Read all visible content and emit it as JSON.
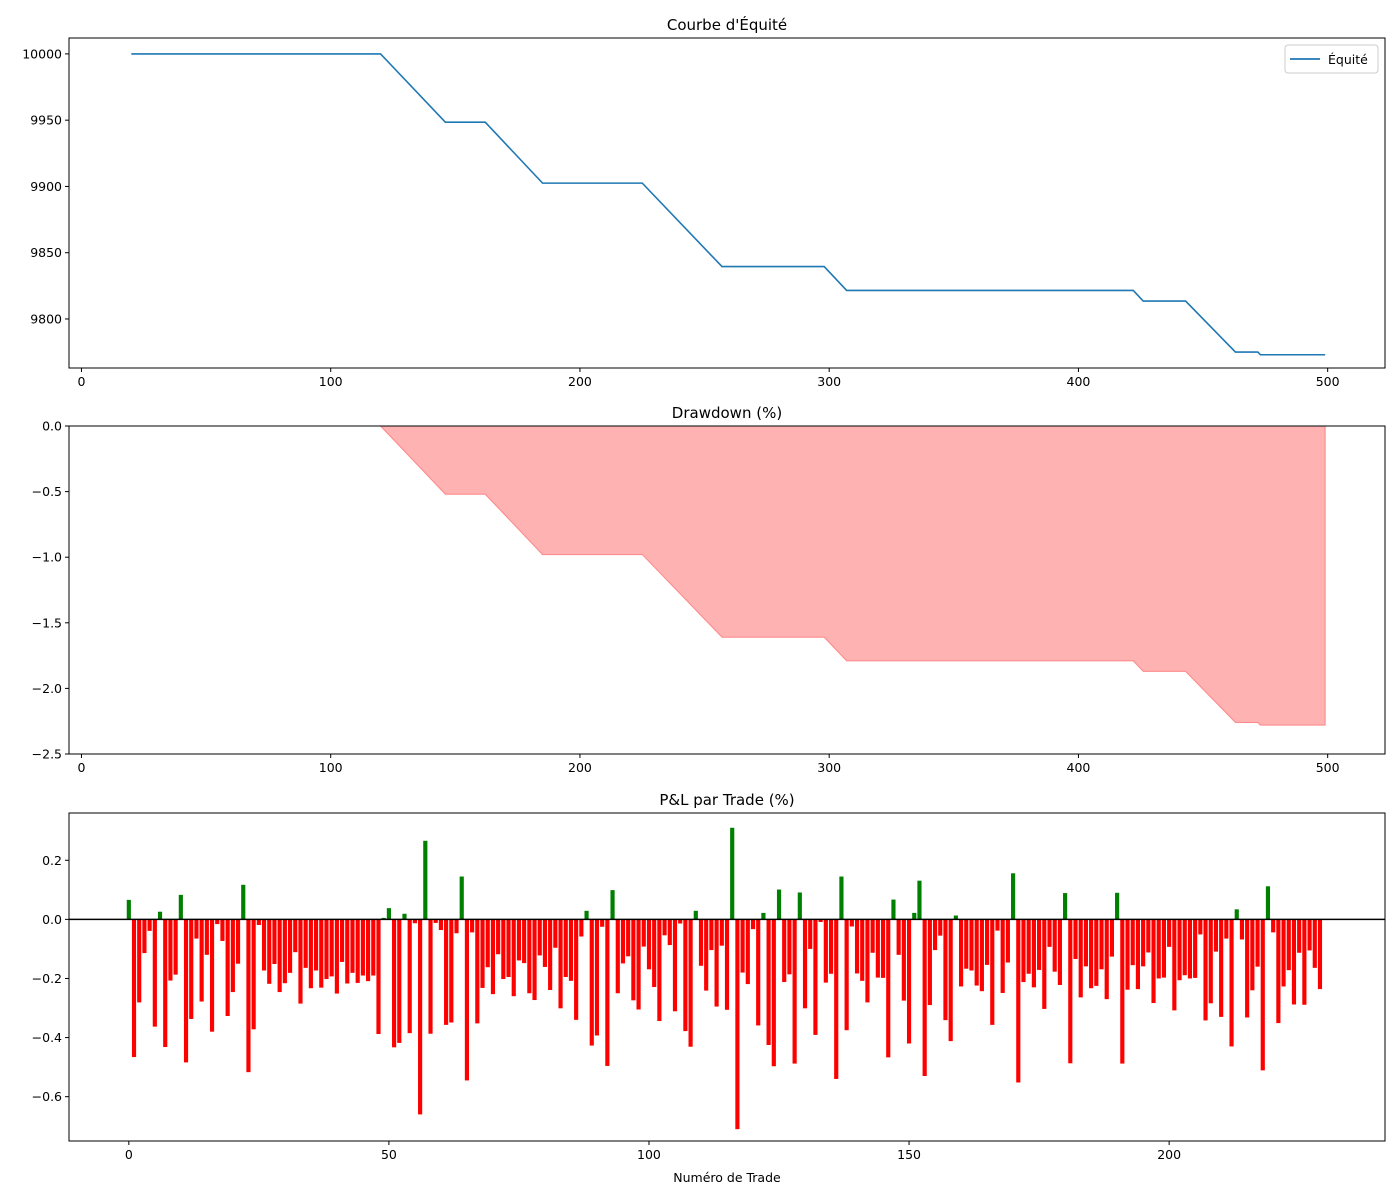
{
  "chart_data": [
    {
      "type": "line",
      "title": "Courbe d'Équité",
      "xlabel": "",
      "ylabel": "",
      "xlim": [
        -5,
        523
      ],
      "ylim": [
        9763,
        10012
      ],
      "xticks": [
        0,
        100,
        200,
        300,
        400,
        500
      ],
      "yticks": [
        9800,
        9850,
        9900,
        9950,
        10000
      ],
      "grid": false,
      "legend": "top-right",
      "color": "#1f77b4",
      "series": [
        {
          "name": "Équité",
          "x": [
            20,
            120,
            146,
            162,
            185,
            225,
            257,
            298,
            307,
            422,
            426,
            443,
            463,
            472,
            473,
            499
          ],
          "y": [
            10000,
            10000,
            9948.5,
            9948.5,
            9902.5,
            9902.5,
            9839.5,
            9839.5,
            9821.5,
            9821.5,
            9813.5,
            9813.5,
            9775,
            9775,
            9773,
            9773
          ]
        }
      ]
    },
    {
      "type": "area",
      "title": "Drawdown (%)",
      "xlabel": "",
      "ylabel": "",
      "xlim": [
        -5,
        523
      ],
      "ylim": [
        -2.5,
        0
      ],
      "xticks": [
        0,
        100,
        200,
        300,
        400,
        500
      ],
      "yticks": [
        0.0,
        -0.5,
        -1.0,
        -1.5,
        -2.0,
        -2.5
      ],
      "grid": false,
      "color": "#ff6666",
      "series": [
        {
          "x": [
            120,
            146,
            162,
            185,
            225,
            257,
            298,
            307,
            422,
            426,
            443,
            463,
            472,
            473,
            499
          ],
          "y": [
            0,
            -0.52,
            -0.52,
            -0.98,
            -0.98,
            -1.61,
            -1.61,
            -1.79,
            -1.79,
            -1.87,
            -1.87,
            -2.26,
            -2.26,
            -2.28,
            -2.28
          ]
        }
      ]
    },
    {
      "type": "bar",
      "title": "P&L par Trade (%)",
      "xlabel": "Numéro de Trade",
      "ylabel": "",
      "xlim": [
        -11.5,
        241.5
      ],
      "ylim": [
        -0.75,
        0.36
      ],
      "xticks": [
        0,
        50,
        100,
        150,
        200
      ],
      "yticks": [
        0.2,
        0.0,
        -0.2,
        -0.4,
        -0.6
      ],
      "grid": false,
      "zero_line": true,
      "positive_color": "#008000",
      "negative_color": "#ff0000",
      "values": [
        0.066,
        -0.466,
        -0.281,
        -0.114,
        -0.039,
        -0.363,
        0.026,
        -0.432,
        -0.207,
        -0.187,
        0.083,
        -0.484,
        -0.337,
        -0.065,
        -0.278,
        -0.12,
        -0.38,
        -0.016,
        -0.073,
        -0.327,
        -0.246,
        -0.15,
        0.117,
        -0.517,
        -0.372,
        -0.019,
        -0.173,
        -0.218,
        -0.151,
        -0.246,
        -0.216,
        -0.181,
        -0.111,
        -0.285,
        -0.164,
        -0.233,
        -0.173,
        -0.231,
        -0.202,
        -0.193,
        -0.251,
        -0.144,
        -0.217,
        -0.181,
        -0.215,
        -0.19,
        -0.209,
        -0.19,
        -0.388,
        0.005,
        0.038,
        -0.433,
        -0.418,
        0.019,
        -0.385,
        -0.013,
        -0.66,
        0.266,
        -0.387,
        -0.012,
        -0.036,
        -0.357,
        -0.349,
        -0.047,
        0.145,
        -0.545,
        -0.044,
        -0.352,
        -0.232,
        -0.162,
        -0.253,
        -0.118,
        -0.202,
        -0.195,
        -0.26,
        -0.139,
        -0.148,
        -0.25,
        -0.273,
        -0.122,
        -0.161,
        -0.239,
        -0.096,
        -0.301,
        -0.195,
        -0.208,
        -0.34,
        -0.058,
        0.029,
        -0.427,
        -0.393,
        -0.025,
        -0.496,
        0.099,
        -0.25,
        -0.149,
        -0.125,
        -0.274,
        -0.305,
        -0.092,
        -0.169,
        -0.229,
        -0.344,
        -0.054,
        -0.087,
        -0.311,
        -0.014,
        -0.378,
        -0.431,
        0.029,
        -0.157,
        -0.241,
        -0.104,
        -0.295,
        -0.089,
        -0.306,
        0.31,
        -0.71,
        -0.18,
        -0.219,
        -0.033,
        -0.359,
        0.022,
        -0.425,
        -0.497,
        0.101,
        -0.212,
        -0.186,
        -0.488,
        0.091,
        -0.301,
        -0.1,
        -0.391,
        -0.009,
        -0.214,
        -0.184,
        -0.54,
        0.145,
        -0.375,
        -0.024,
        -0.183,
        -0.208,
        -0.281,
        -0.113,
        -0.197,
        -0.198,
        -0.467,
        0.067,
        -0.12,
        -0.275,
        -0.42,
        0.022,
        0.131,
        -0.53,
        -0.29,
        -0.104,
        -0.055,
        -0.341,
        -0.412,
        0.013,
        -0.227,
        -0.167,
        -0.173,
        -0.224,
        -0.243,
        -0.154,
        -0.357,
        -0.038,
        -0.249,
        -0.146,
        0.156,
        -0.552,
        -0.212,
        -0.184,
        -0.23,
        -0.171,
        -0.303,
        -0.093,
        -0.177,
        -0.222,
        0.089,
        -0.487,
        -0.134,
        -0.264,
        -0.159,
        -0.233,
        -0.225,
        -0.169,
        -0.27,
        -0.126,
        0.09,
        -0.488,
        -0.238,
        -0.155,
        -0.236,
        -0.159,
        -0.112,
        -0.283,
        -0.2,
        -0.197,
        -0.093,
        -0.308,
        -0.206,
        -0.189,
        -0.2,
        -0.198,
        -0.051,
        -0.342,
        -0.284,
        -0.109,
        -0.33,
        -0.065,
        -0.43,
        0.034,
        -0.068,
        -0.332,
        -0.24,
        -0.16,
        -0.511,
        0.112,
        -0.044,
        -0.351,
        -0.227,
        -0.172,
        -0.288,
        -0.113,
        -0.289,
        -0.105,
        -0.164,
        -0.236
      ]
    }
  ]
}
